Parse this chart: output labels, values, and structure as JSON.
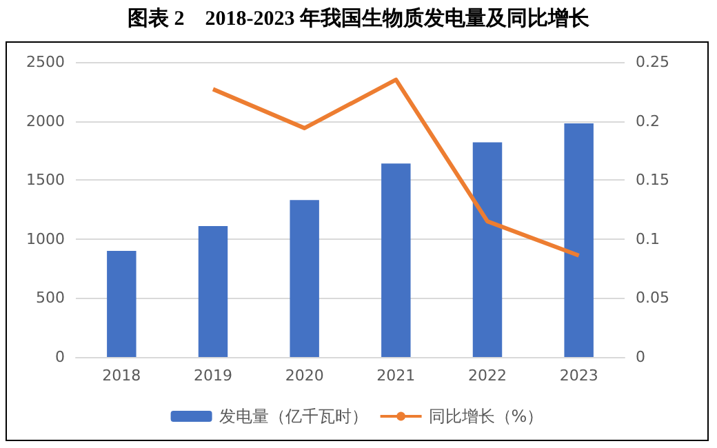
{
  "chart_data": {
    "type": "bar",
    "title": "图表 2    2018-2023 年我国生物质发电量及同比增长",
    "categories": [
      "2018",
      "2019",
      "2020",
      "2021",
      "2022",
      "2023"
    ],
    "series": [
      {
        "name": "发电量（亿千瓦时）",
        "color": "#4472c4",
        "values": [
          900,
          1110,
          1330,
          1640,
          1820,
          1980
        ]
      },
      {
        "name": "同比增长（%）",
        "type": "line",
        "axis": "y2",
        "color": "#ed7d31",
        "values": [
          null,
          0.227,
          0.194,
          0.235,
          0.115,
          0.086
        ],
        "marker": "none"
      }
    ],
    "ylim": [
      0,
      2500
    ],
    "yticks": [
      0,
      500,
      1000,
      1500,
      2000,
      2500
    ],
    "y2lim": [
      0,
      0.25
    ],
    "y2ticks": [
      0,
      0.05,
      0.1,
      0.15,
      0.2,
      0.25
    ],
    "grid": "y",
    "legend": "bottom"
  }
}
